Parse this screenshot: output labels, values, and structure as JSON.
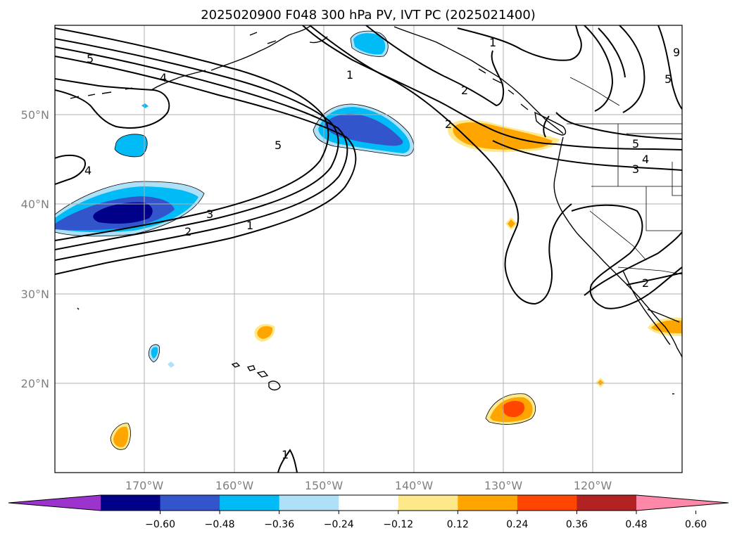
{
  "title": "2025020900 F048 300 hPa PV, IVT PC (2025021400)",
  "map": {
    "lon_range": [
      -180,
      -110
    ],
    "lat_range": [
      10,
      60
    ],
    "gridlines": true,
    "lat_labels": [
      "50°N",
      "40°N",
      "30°N",
      "20°N"
    ],
    "lon_labels": [
      "170°W",
      "160°W",
      "150°W",
      "140°W",
      "130°W",
      "120°W"
    ],
    "contour_labels": [
      "5",
      "4",
      "4",
      "5",
      "3",
      "2",
      "1",
      "1",
      "2",
      "2",
      "1",
      "5",
      "4",
      "3",
      "2",
      "1",
      "9",
      "5"
    ]
  },
  "colorbar": {
    "ticks": [
      "−0.60",
      "−0.48",
      "−0.36",
      "−0.24",
      "−0.12",
      "0.12",
      "0.24",
      "0.36",
      "0.48",
      "0.60"
    ],
    "colors": [
      "#9b33cc",
      "#000088",
      "#3355cc",
      "#00bbf5",
      "#aee0f8",
      "#ffffff",
      "#fde98a",
      "#ffa500",
      "#ff4500",
      "#b22222",
      "#ff87a8"
    ],
    "extend": "both"
  }
}
